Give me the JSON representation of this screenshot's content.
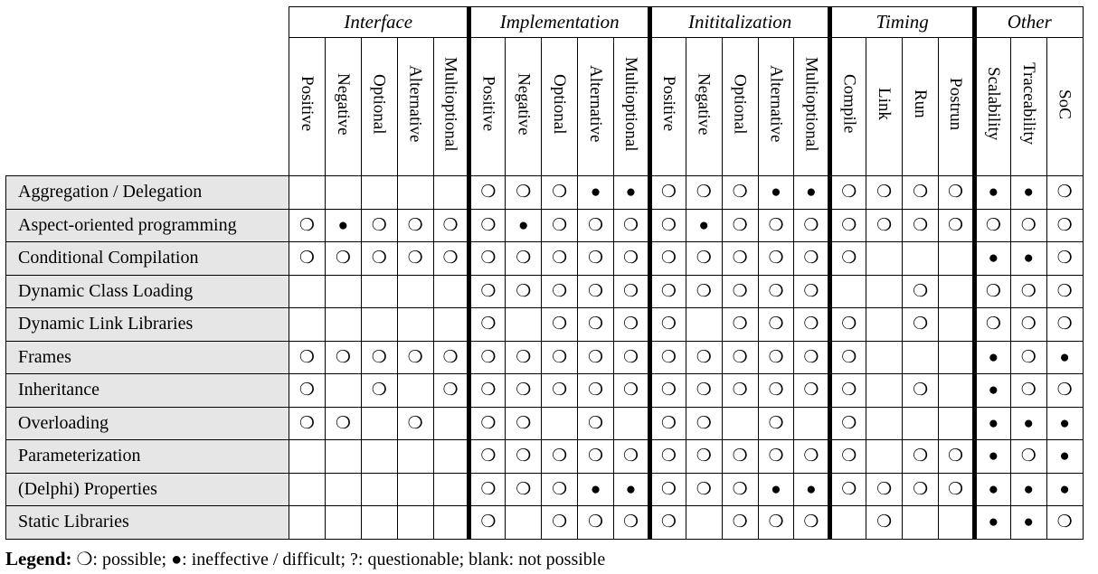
{
  "symbols": {
    "possible": "❍",
    "ineffective": "●"
  },
  "groups": [
    {
      "name": "Interface",
      "subs": [
        "Positive",
        "Negative",
        "Optional",
        "Alternative",
        "Multioptional"
      ]
    },
    {
      "name": "Implementation",
      "subs": [
        "Positive",
        "Negative",
        "Optional",
        "Alternative",
        "Multioptional"
      ]
    },
    {
      "name": "Initiталization",
      "subs": []
    }
  ],
  "placeholder": true
}
